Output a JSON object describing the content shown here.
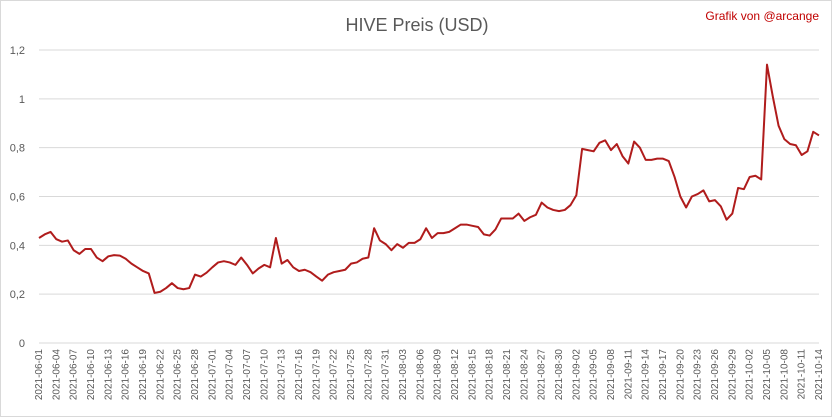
{
  "chart_data": {
    "type": "line",
    "title": "HIVE Preis (USD)",
    "credit": "Grafik von @arcange",
    "xlabel": "",
    "ylabel": "",
    "ylim": [
      0,
      1.2
    ],
    "yticks": [
      "0",
      "0,2",
      "0,4",
      "0,6",
      "0,8",
      "1",
      "1,2"
    ],
    "grid": "horizontal",
    "line_color": "#b01c1c",
    "x_tick_labels": [
      "2021-06-01",
      "2021-06-04",
      "2021-06-07",
      "2021-06-10",
      "2021-06-13",
      "2021-06-16",
      "2021-06-19",
      "2021-06-22",
      "2021-06-25",
      "2021-06-28",
      "2021-07-01",
      "2021-07-04",
      "2021-07-07",
      "2021-07-10",
      "2021-07-13",
      "2021-07-16",
      "2021-07-19",
      "2021-07-22",
      "2021-07-25",
      "2021-07-28",
      "2021-07-31",
      "2021-08-03",
      "2021-08-06",
      "2021-08-09",
      "2021-08-12",
      "2021-08-15",
      "2021-08-18",
      "2021-08-21",
      "2021-08-24",
      "2021-08-27",
      "2021-08-30",
      "2021-09-02",
      "2021-09-05",
      "2021-09-08",
      "2021-09-11",
      "2021-09-14",
      "2021-09-17",
      "2021-09-20",
      "2021-09-23",
      "2021-09-26",
      "2021-09-29",
      "2021-10-02",
      "2021-10-05",
      "2021-10-08",
      "2021-10-11",
      "2021-10-14"
    ],
    "series": [
      {
        "start_date": "2021-06-01",
        "values": [
          0.43,
          0.445,
          0.455,
          0.425,
          0.415,
          0.42,
          0.38,
          0.365,
          0.385,
          0.385,
          0.35,
          0.335,
          0.355,
          0.36,
          0.358,
          0.345,
          0.325,
          0.31,
          0.295,
          0.285,
          0.205,
          0.21,
          0.225,
          0.245,
          0.225,
          0.22,
          0.225,
          0.28,
          0.272,
          0.288,
          0.31,
          0.33,
          0.335,
          0.33,
          0.32,
          0.35,
          0.32,
          0.285,
          0.305,
          0.32,
          0.31,
          0.43,
          0.325,
          0.34,
          0.31,
          0.295,
          0.3,
          0.29,
          0.272,
          0.255,
          0.28,
          0.29,
          0.295,
          0.3,
          0.325,
          0.33,
          0.345,
          0.35,
          0.47,
          0.42,
          0.405,
          0.38,
          0.405,
          0.39,
          0.41,
          0.41,
          0.425,
          0.47,
          0.43,
          0.45,
          0.45,
          0.455,
          0.47,
          0.485,
          0.485,
          0.48,
          0.475,
          0.445,
          0.44,
          0.465,
          0.51,
          0.51,
          0.51,
          0.53,
          0.5,
          0.515,
          0.525,
          0.575,
          0.555,
          0.545,
          0.54,
          0.545,
          0.565,
          0.605,
          0.795,
          0.79,
          0.785,
          0.82,
          0.83,
          0.79,
          0.815,
          0.765,
          0.735,
          0.825,
          0.8,
          0.75,
          0.75,
          0.755,
          0.755,
          0.745,
          0.68,
          0.6,
          0.555,
          0.6,
          0.61,
          0.625,
          0.58,
          0.585,
          0.56,
          0.505,
          0.53,
          0.635,
          0.63,
          0.68,
          0.685,
          0.67,
          1.14,
          1.01,
          0.89,
          0.835,
          0.815,
          0.81,
          0.77,
          0.785,
          0.865,
          0.85
        ]
      }
    ]
  }
}
